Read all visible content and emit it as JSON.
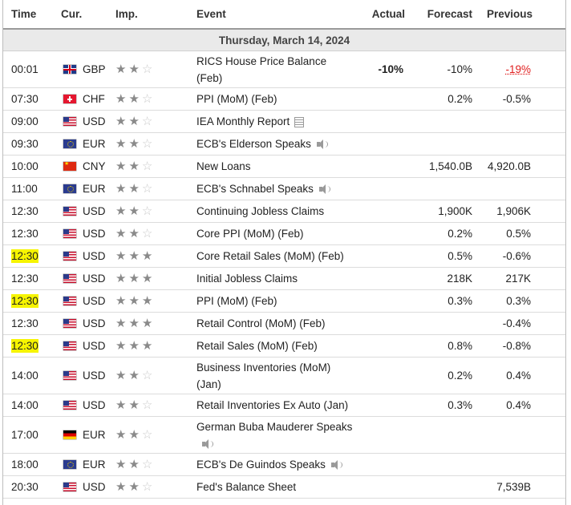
{
  "headers": {
    "time": "Time",
    "currency": "Cur.",
    "importance": "Imp.",
    "event": "Event",
    "actual": "Actual",
    "forecast": "Forecast",
    "previous": "Previous"
  },
  "date_row": "Thursday, March 14, 2024",
  "colors": {
    "highlight": "#f6f400",
    "negative": "#e01e1e",
    "star_on": "#8a8a8a",
    "star_off": "#c9c9c9"
  },
  "rows": [
    {
      "time": "00:01",
      "currency": "GBP",
      "flag": "gb-flag-icon",
      "stars": 2,
      "event": "RICS House Price Balance (Feb)",
      "icon": "",
      "actual": "-10%",
      "forecast": "-10%",
      "previous": "-19%",
      "previous_red": true,
      "highlight": false
    },
    {
      "time": "07:30",
      "currency": "CHF",
      "flag": "ch-flag-icon",
      "stars": 2,
      "event": "PPI (MoM) (Feb)",
      "icon": "",
      "actual": "",
      "forecast": "0.2%",
      "previous": "-0.5%",
      "highlight": false
    },
    {
      "time": "09:00",
      "currency": "USD",
      "flag": "us-flag-icon",
      "stars": 2,
      "event": "IEA Monthly Report",
      "icon": "report-icon",
      "actual": "",
      "forecast": "",
      "previous": "",
      "highlight": false
    },
    {
      "time": "09:30",
      "currency": "EUR",
      "flag": "eu-flag-icon",
      "stars": 2,
      "event": "ECB's Elderson Speaks",
      "icon": "speaker-icon",
      "actual": "",
      "forecast": "",
      "previous": "",
      "highlight": false
    },
    {
      "time": "10:00",
      "currency": "CNY",
      "flag": "cn-flag-icon",
      "stars": 2,
      "event": "New Loans",
      "icon": "",
      "actual": "",
      "forecast": "1,540.0B",
      "previous": "4,920.0B",
      "highlight": false
    },
    {
      "time": "11:00",
      "currency": "EUR",
      "flag": "eu-flag-icon",
      "stars": 2,
      "event": "ECB's Schnabel Speaks",
      "icon": "speaker-icon",
      "actual": "",
      "forecast": "",
      "previous": "",
      "highlight": false
    },
    {
      "time": "12:30",
      "currency": "USD",
      "flag": "us-flag-icon",
      "stars": 2,
      "event": "Continuing Jobless Claims",
      "icon": "",
      "actual": "",
      "forecast": "1,900K",
      "previous": "1,906K",
      "highlight": false
    },
    {
      "time": "12:30",
      "currency": "USD",
      "flag": "us-flag-icon",
      "stars": 2,
      "event": "Core PPI (MoM) (Feb)",
      "icon": "",
      "actual": "",
      "forecast": "0.2%",
      "previous": "0.5%",
      "highlight": false
    },
    {
      "time": "12:30",
      "currency": "USD",
      "flag": "us-flag-icon",
      "stars": 3,
      "event": "Core Retail Sales (MoM) (Feb)",
      "icon": "",
      "actual": "",
      "forecast": "0.5%",
      "previous": "-0.6%",
      "highlight": true
    },
    {
      "time": "12:30",
      "currency": "USD",
      "flag": "us-flag-icon",
      "stars": 3,
      "event": "Initial Jobless Claims",
      "icon": "",
      "actual": "",
      "forecast": "218K",
      "previous": "217K",
      "highlight": false
    },
    {
      "time": "12:30",
      "currency": "USD",
      "flag": "us-flag-icon",
      "stars": 3,
      "event": "PPI (MoM) (Feb)",
      "icon": "",
      "actual": "",
      "forecast": "0.3%",
      "previous": "0.3%",
      "highlight": true
    },
    {
      "time": "12:30",
      "currency": "USD",
      "flag": "us-flag-icon",
      "stars": 3,
      "event": "Retail Control (MoM) (Feb)",
      "icon": "",
      "actual": "",
      "forecast": "",
      "previous": "-0.4%",
      "highlight": false
    },
    {
      "time": "12:30",
      "currency": "USD",
      "flag": "us-flag-icon",
      "stars": 3,
      "event": "Retail Sales (MoM) (Feb)",
      "icon": "",
      "actual": "",
      "forecast": "0.8%",
      "previous": "-0.8%",
      "highlight": true
    },
    {
      "time": "14:00",
      "currency": "USD",
      "flag": "us-flag-icon",
      "stars": 2,
      "event": "Business Inventories (MoM) (Jan)",
      "icon": "",
      "actual": "",
      "forecast": "0.2%",
      "previous": "0.4%",
      "highlight": false
    },
    {
      "time": "14:00",
      "currency": "USD",
      "flag": "us-flag-icon",
      "stars": 2,
      "event": "Retail Inventories Ex Auto (Jan)",
      "icon": "",
      "actual": "",
      "forecast": "0.3%",
      "previous": "0.4%",
      "highlight": false
    },
    {
      "time": "17:00",
      "currency": "EUR",
      "flag": "de-flag-icon",
      "stars": 2,
      "event": "German Buba Mauderer Speaks",
      "icon": "speaker-icon",
      "actual": "",
      "forecast": "",
      "previous": "",
      "highlight": false
    },
    {
      "time": "18:00",
      "currency": "EUR",
      "flag": "eu-flag-icon",
      "stars": 2,
      "event": "ECB's De Guindos Speaks",
      "icon": "speaker-icon",
      "actual": "",
      "forecast": "",
      "previous": "",
      "highlight": false
    },
    {
      "time": "20:30",
      "currency": "USD",
      "flag": "us-flag-icon",
      "stars": 2,
      "event": "Fed's Balance Sheet",
      "icon": "",
      "actual": "",
      "forecast": "",
      "previous": "7,539B",
      "highlight": false
    }
  ]
}
